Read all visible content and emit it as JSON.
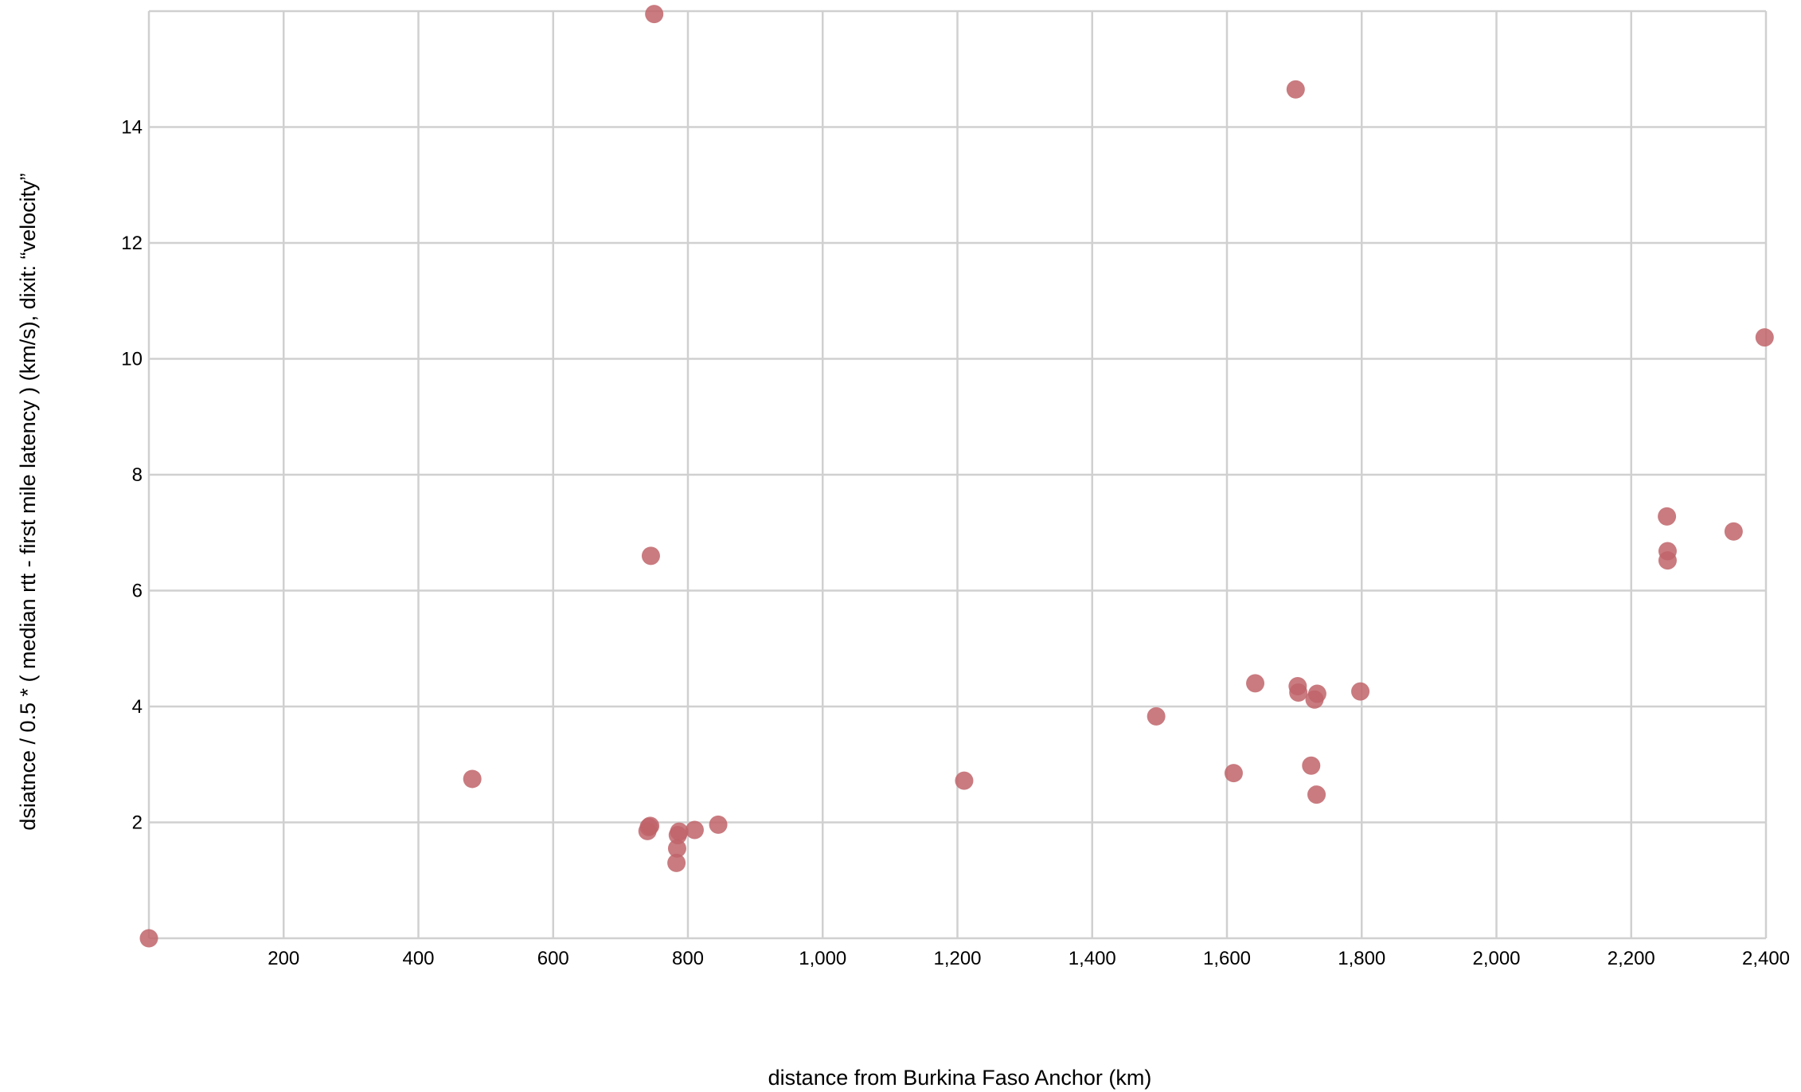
{
  "colors": {
    "point": "#c0646a",
    "grid": "#d0d0d0",
    "background": "#ffffff"
  },
  "chart_data": {
    "type": "scatter",
    "title": "",
    "xlabel": "distance from Burkina Faso Anchor (km)",
    "ylabel": "dsiatnce / 0.5 * ( median rtt - first mile latency ) (km/s), dixit: “velocity”",
    "xlim": [
      0,
      2400
    ],
    "ylim": [
      0,
      16
    ],
    "x_ticks": [
      200,
      400,
      600,
      800,
      1000,
      1200,
      1400,
      1600,
      1800,
      2000,
      2200,
      2400
    ],
    "x_tick_labels": [
      "200",
      "400",
      "600",
      "800",
      "1,000",
      "1,200",
      "1,400",
      "1,600",
      "1,800",
      "2,000",
      "2,200",
      "2,400"
    ],
    "y_ticks": [
      2,
      4,
      6,
      8,
      10,
      12,
      14
    ],
    "y_tick_labels": [
      "2",
      "4",
      "6",
      "8",
      "10",
      "12",
      "14"
    ],
    "grid": true,
    "legend": "none",
    "series": [
      {
        "points": [
          {
            "x": 0,
            "y": 0.0
          },
          {
            "x": 480,
            "y": 2.75
          },
          {
            "x": 740,
            "y": 1.85
          },
          {
            "x": 742,
            "y": 1.92
          },
          {
            "x": 744,
            "y": 1.94
          },
          {
            "x": 745,
            "y": 6.6
          },
          {
            "x": 750,
            "y": 15.95
          },
          {
            "x": 783,
            "y": 1.3
          },
          {
            "x": 784,
            "y": 1.55
          },
          {
            "x": 785,
            "y": 1.78
          },
          {
            "x": 787,
            "y": 1.84
          },
          {
            "x": 810,
            "y": 1.87
          },
          {
            "x": 845,
            "y": 1.96
          },
          {
            "x": 1210,
            "y": 2.72
          },
          {
            "x": 1495,
            "y": 3.83
          },
          {
            "x": 1610,
            "y": 2.85
          },
          {
            "x": 1642,
            "y": 4.4
          },
          {
            "x": 1702,
            "y": 14.65
          },
          {
            "x": 1705,
            "y": 4.35
          },
          {
            "x": 1706,
            "y": 4.24
          },
          {
            "x": 1725,
            "y": 2.98
          },
          {
            "x": 1730,
            "y": 4.12
          },
          {
            "x": 1733,
            "y": 2.48
          },
          {
            "x": 1734,
            "y": 4.22
          },
          {
            "x": 1798,
            "y": 4.26
          },
          {
            "x": 2253,
            "y": 7.28
          },
          {
            "x": 2254,
            "y": 6.68
          },
          {
            "x": 2254,
            "y": 6.52
          },
          {
            "x": 2352,
            "y": 7.02
          },
          {
            "x": 2398,
            "y": 10.37
          }
        ]
      }
    ]
  }
}
